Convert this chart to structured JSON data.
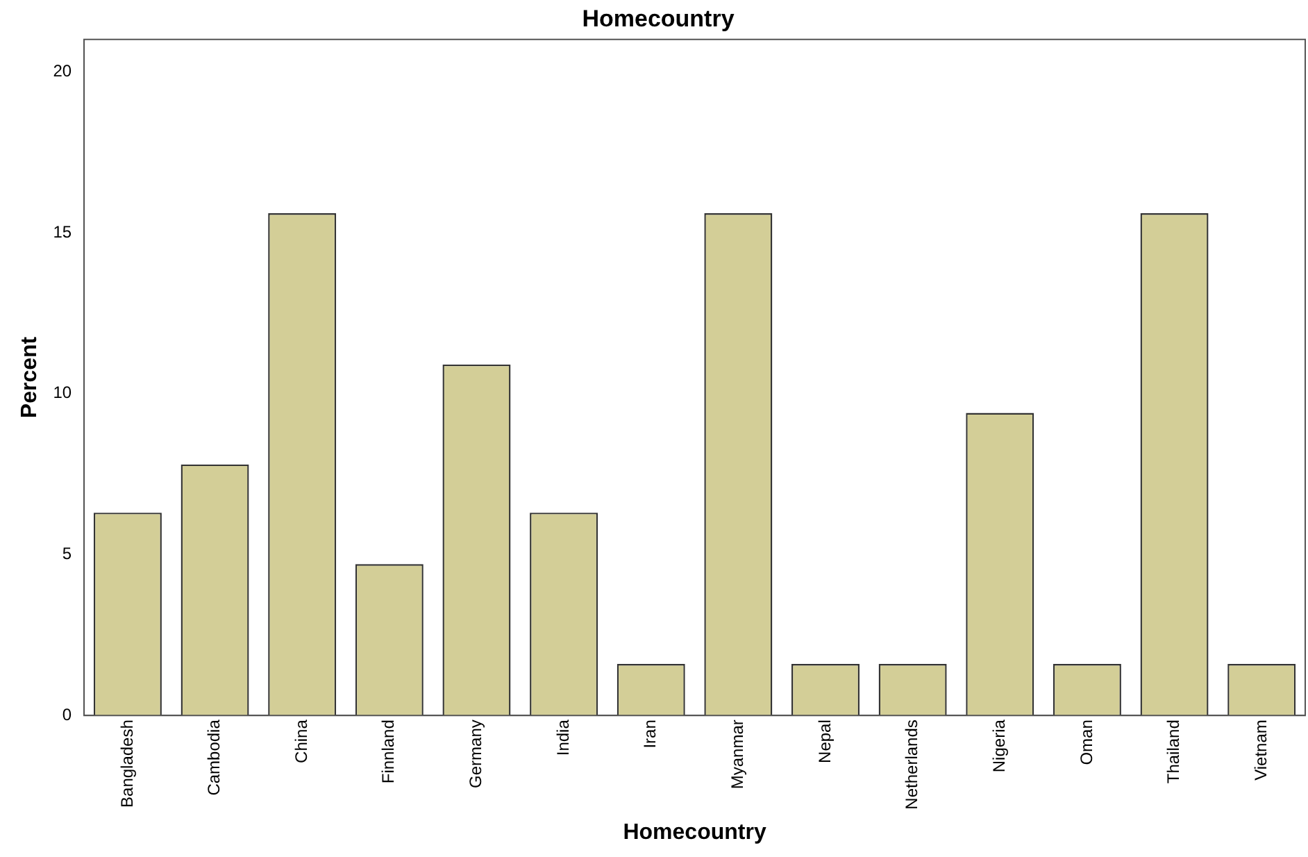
{
  "chart_data": {
    "type": "bar",
    "title": "Homecountry",
    "xlabel": "Homecountry",
    "ylabel": "Percent",
    "categories": [
      "Bangladesh",
      "Cambodia",
      "China",
      "Finnland",
      "Germany",
      "India",
      "Iran",
      "Myanmar",
      "Nepal",
      "Netherlands",
      "Nigeria",
      "Oman",
      "Thailand",
      "Vietnam"
    ],
    "values": [
      6.3,
      7.8,
      15.6,
      4.7,
      10.9,
      6.3,
      1.6,
      15.6,
      1.6,
      1.6,
      9.4,
      1.6,
      15.6,
      1.6
    ],
    "color": "#d3ce97",
    "ylim": [
      0,
      21
    ],
    "yticks": [
      0,
      5,
      10,
      15,
      20
    ],
    "grid": false,
    "legend": false
  }
}
